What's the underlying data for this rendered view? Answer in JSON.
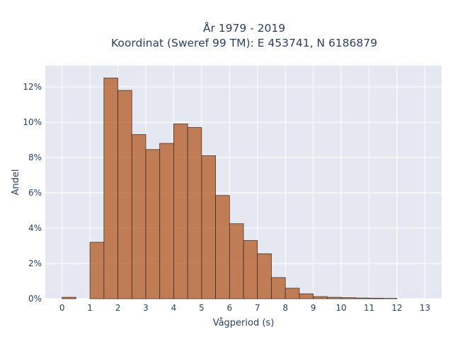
{
  "chart_data": {
    "type": "bar",
    "title_line1": "År 1979 - 2019",
    "title_line2": "Koordinat (Sweref 99 TM): E 453741, N 6186879",
    "xlabel": "Vågperiod (s)",
    "ylabel": "Andel",
    "xlim": [
      -0.6,
      13.6
    ],
    "ylim": [
      0,
      13.2
    ],
    "x_ticks": [
      0,
      1,
      2,
      3,
      4,
      5,
      6,
      7,
      8,
      9,
      10,
      11,
      12,
      13
    ],
    "y_ticks": [
      0,
      2,
      4,
      6,
      8,
      10,
      12
    ],
    "y_tick_suffix": "%",
    "bin_width": 0.5,
    "bin_starts": [
      0,
      0.5,
      1,
      1.5,
      2,
      2.5,
      3,
      3.5,
      4,
      4.5,
      5,
      5.5,
      6,
      6.5,
      7,
      7.5,
      8,
      8.5,
      9,
      9.5,
      10,
      10.5,
      11,
      11.5
    ],
    "values": [
      0.08,
      0,
      3.2,
      12.5,
      11.8,
      9.3,
      8.45,
      8.8,
      9.9,
      9.7,
      8.1,
      5.85,
      4.25,
      3.3,
      2.55,
      1.2,
      0.6,
      0.28,
      0.12,
      0.08,
      0.06,
      0.04,
      0.03,
      0.02
    ],
    "grid": true,
    "colors": {
      "bar": "#b5602e",
      "bar_edge": "#3b2417",
      "plot_bg": "#e5e8f1",
      "grid": "#ffffff",
      "text": "#2a3f5f"
    }
  }
}
